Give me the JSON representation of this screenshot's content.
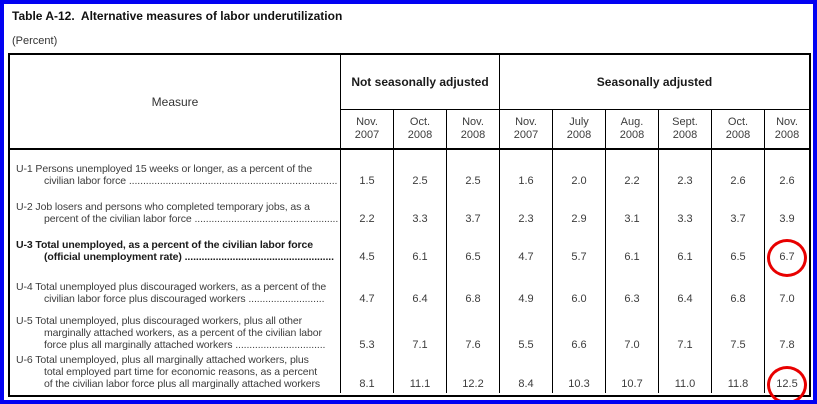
{
  "window": {
    "frame_color": "#0202f2",
    "annotation_color": "#e80000"
  },
  "title": "Table A-12.  Alternative measures of labor underutilization",
  "subtitle": "(Percent)",
  "table": {
    "measure_header": "Measure",
    "column_groups": [
      {
        "label": "Not seasonally adjusted",
        "span": 3
      },
      {
        "label": "Seasonally adjusted",
        "span": 6
      }
    ],
    "columns": [
      {
        "month": "Nov.",
        "year": "2007"
      },
      {
        "month": "Oct.",
        "year": "2008"
      },
      {
        "month": "Nov.",
        "year": "2008"
      },
      {
        "month": "Nov.",
        "year": "2007"
      },
      {
        "month": "July",
        "year": "2008"
      },
      {
        "month": "Aug.",
        "year": "2008"
      },
      {
        "month": "Sept.",
        "year": "2008"
      },
      {
        "month": "Oct.",
        "year": "2008"
      },
      {
        "month": "Nov.",
        "year": "2008"
      }
    ],
    "rows": [
      {
        "id": "U-1",
        "bold": false,
        "measure_lines": [
          "U-1 Persons unemployed 15 weeks or longer, as a percent of the",
          "civilian labor force ................................................................................."
        ],
        "values": [
          "1.5",
          "2.5",
          "2.5",
          "1.6",
          "2.0",
          "2.2",
          "2.3",
          "2.6",
          "2.6"
        ],
        "circled_value_index": null
      },
      {
        "id": "U-2",
        "bold": false,
        "measure_lines": [
          "U-2 Job losers and persons who completed temporary jobs, as a",
          "percent of the civilian labor force ..................................................."
        ],
        "values": [
          "2.2",
          "3.3",
          "3.7",
          "2.3",
          "2.9",
          "3.1",
          "3.3",
          "3.7",
          "3.9"
        ],
        "circled_value_index": null
      },
      {
        "id": "U-3",
        "bold": true,
        "measure_lines": [
          "U-3 Total unemployed, as a percent of the civilian labor force",
          "(official unemployment rate) ....................................................."
        ],
        "values": [
          "4.5",
          "6.1",
          "6.5",
          "4.7",
          "5.7",
          "6.1",
          "6.1",
          "6.5",
          "6.7"
        ],
        "circled_value_index": 8
      },
      {
        "id": "U-4",
        "bold": false,
        "measure_lines": [
          "U-4 Total unemployed plus discouraged workers, as a percent of the",
          "civilian labor force plus discouraged workers ..........................."
        ],
        "values": [
          "4.7",
          "6.4",
          "6.8",
          "4.9",
          "6.0",
          "6.3",
          "6.4",
          "6.8",
          "7.0"
        ],
        "circled_value_index": null
      },
      {
        "id": "U-5",
        "bold": false,
        "measure_lines": [
          "U-5 Total unemployed, plus discouraged workers, plus all other",
          "marginally attached workers, as a percent of the civilian labor",
          "force plus all marginally attached workers ................................"
        ],
        "values": [
          "5.3",
          "7.1",
          "7.6",
          "5.5",
          "6.6",
          "7.0",
          "7.1",
          "7.5",
          "7.8"
        ],
        "circled_value_index": null
      },
      {
        "id": "U-6",
        "bold": false,
        "measure_lines": [
          "U-6 Total unemployed, plus all marginally attached workers, plus",
          "total employed part time for economic reasons, as a percent",
          "of the civilian labor force plus all marginally attached workers"
        ],
        "values": [
          "8.1",
          "11.1",
          "12.2",
          "8.4",
          "10.3",
          "10.7",
          "11.0",
          "11.8",
          "12.5"
        ],
        "circled_value_index": 8
      }
    ]
  }
}
